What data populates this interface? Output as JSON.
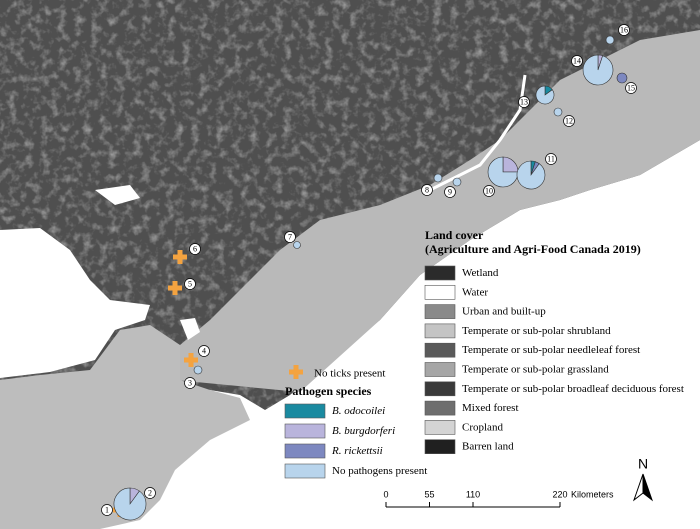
{
  "land_cover": {
    "title": "Land cover",
    "subtitle": "(Agriculture and Agri-Food Canada 2019)",
    "items": [
      {
        "name": "Wetland",
        "color": "#2b2b2b"
      },
      {
        "name": "Water",
        "color": "#ffffff"
      },
      {
        "name": "Urban and built-up",
        "color": "#8a8a8a"
      },
      {
        "name": "Temperate or sub-polar shrubland",
        "color": "#c4c4c4"
      },
      {
        "name": "Temperate or sub-polar needleleaf forest",
        "color": "#5a5a5a"
      },
      {
        "name": "Temperate or sub-polar grassland",
        "color": "#a6a6a6"
      },
      {
        "name": "Temperate or sub-polar broadleaf deciduous forest",
        "color": "#3a3a3a"
      },
      {
        "name": "Mixed forest",
        "color": "#6e6e6e"
      },
      {
        "name": "Cropland",
        "color": "#d4d4d4"
      },
      {
        "name": "Barren land",
        "color": "#202020"
      }
    ]
  },
  "no_ticks": {
    "label": "No ticks present",
    "color": "#f4a340"
  },
  "pathogens": {
    "title": "Pathogen species",
    "items": [
      {
        "name": "B. odocoilei",
        "color": "#1a8aa0",
        "italic": true
      },
      {
        "name": "B. burgdorferi",
        "color": "#b9b4dc",
        "italic": true
      },
      {
        "name": "R. rickettsii",
        "color": "#7d88c0",
        "italic": true
      },
      {
        "name": "No pathogens present",
        "color": "#b8d4ec",
        "italic": false
      }
    ]
  },
  "sites": [
    {
      "label": "1"
    },
    {
      "label": "2",
      "values": [
        0,
        10,
        0,
        90
      ]
    },
    {
      "label": "3",
      "values": [
        0,
        0,
        0,
        100
      ]
    },
    {
      "label": "4"
    },
    {
      "label": "5"
    },
    {
      "label": "6"
    },
    {
      "label": "7",
      "values": [
        0,
        0,
        0,
        100
      ]
    },
    {
      "label": "8",
      "values": [
        0,
        0,
        0,
        100
      ]
    },
    {
      "label": "9",
      "values": [
        0,
        0,
        0,
        100
      ]
    },
    {
      "label": "10",
      "values": [
        0,
        25,
        0,
        75
      ]
    },
    {
      "label": "11",
      "values": [
        5,
        0,
        5,
        90
      ]
    },
    {
      "label": "12",
      "values": [
        0,
        0,
        0,
        100
      ]
    },
    {
      "label": "13",
      "values": [
        15,
        0,
        0,
        85
      ]
    },
    {
      "label": "14",
      "values": [
        0,
        5,
        0,
        95
      ]
    },
    {
      "label": "15",
      "values": [
        0,
        0,
        100,
        0
      ]
    },
    {
      "label": "16",
      "values": [
        0,
        0,
        0,
        100
      ]
    }
  ],
  "scale": {
    "ticks": [
      0,
      55,
      110,
      220
    ],
    "unit": "Kilometers"
  },
  "north": "N"
}
